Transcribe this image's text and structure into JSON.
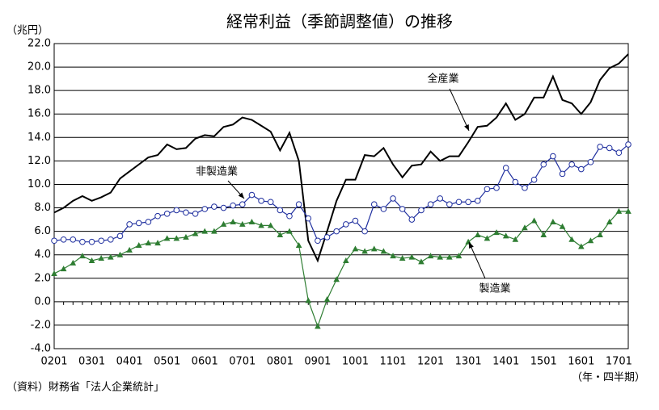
{
  "chart_data": {
    "type": "line",
    "title": "経常利益（季節調整値）の推移",
    "y_unit": "（兆円）",
    "x_unit": "（年・四半期）",
    "source": "（資料）財務省「法人企業統計」",
    "categories": [
      "0201",
      null,
      null,
      null,
      "0301",
      null,
      null,
      null,
      "0401",
      null,
      null,
      null,
      "0501",
      null,
      null,
      null,
      "0601",
      null,
      null,
      null,
      "0701",
      null,
      null,
      null,
      "0801",
      null,
      null,
      null,
      "0901",
      null,
      null,
      null,
      "1001",
      null,
      null,
      null,
      "1101",
      null,
      null,
      null,
      "1201",
      null,
      null,
      null,
      "1301",
      null,
      null,
      null,
      "1401",
      null,
      null,
      null,
      "1501",
      null,
      null,
      null,
      "1601",
      null,
      null,
      null,
      "1701",
      null
    ],
    "series": [
      {
        "name": "全産業",
        "color": "#000000",
        "marker": "none",
        "values": [
          7.6,
          8.0,
          8.6,
          9.0,
          8.6,
          8.9,
          9.3,
          10.5,
          11.1,
          11.7,
          12.3,
          12.5,
          13.4,
          13.0,
          13.1,
          13.9,
          14.2,
          14.1,
          14.9,
          15.1,
          15.7,
          15.5,
          15.0,
          14.5,
          12.9,
          14.4,
          12.0,
          5.2,
          3.5,
          6.0,
          8.6,
          10.4,
          10.4,
          12.5,
          12.4,
          13.1,
          11.7,
          10.6,
          11.6,
          11.7,
          12.8,
          12.0,
          12.4,
          12.4,
          13.6,
          14.9,
          15.0,
          15.7,
          16.9,
          15.5,
          16.0,
          17.4,
          17.4,
          19.2,
          17.2,
          16.9,
          16.0,
          17.0,
          18.9,
          19.9,
          20.3,
          21.1
        ]
      },
      {
        "name": "非製造業",
        "color": "#1f2f9f",
        "marker": "circle",
        "values": [
          5.2,
          5.3,
          5.3,
          5.1,
          5.1,
          5.2,
          5.3,
          5.6,
          6.6,
          6.7,
          6.8,
          7.3,
          7.5,
          7.8,
          7.6,
          7.5,
          7.9,
          8.1,
          8.0,
          8.2,
          8.3,
          9.1,
          8.6,
          8.5,
          7.8,
          7.3,
          8.3,
          7.1,
          5.2,
          5.5,
          6.0,
          6.6,
          6.9,
          6.0,
          8.3,
          7.9,
          8.8,
          7.9,
          7.0,
          7.8,
          8.3,
          8.8,
          8.3,
          8.5,
          8.5,
          8.6,
          9.6,
          9.7,
          11.4,
          10.2,
          9.7,
          10.4,
          11.7,
          12.4,
          10.9,
          11.7,
          11.3,
          11.9,
          13.2,
          13.1,
          12.7,
          13.4
        ]
      },
      {
        "name": "製造業",
        "color": "#2e7d32",
        "marker": "triangle",
        "values": [
          2.4,
          2.8,
          3.3,
          3.9,
          3.5,
          3.7,
          3.8,
          4.0,
          4.4,
          4.8,
          5.0,
          5.0,
          5.4,
          5.4,
          5.5,
          5.8,
          6.0,
          6.0,
          6.6,
          6.8,
          6.6,
          6.8,
          6.5,
          6.5,
          5.7,
          6.0,
          4.8,
          0.1,
          -2.1,
          0.2,
          1.9,
          3.5,
          4.5,
          4.3,
          4.5,
          4.3,
          3.9,
          3.7,
          3.8,
          3.4,
          3.9,
          3.8,
          3.8,
          3.9,
          5.1,
          5.7,
          5.4,
          5.9,
          5.6,
          5.3,
          6.3,
          6.9,
          5.7,
          6.8,
          6.4,
          5.3,
          4.7,
          5.2,
          5.7,
          6.8,
          7.7,
          7.7
        ]
      }
    ],
    "ylim": [
      -4,
      22
    ],
    "yticks": [
      {
        "value": -4,
        "label": "-4.0"
      },
      {
        "value": -2,
        "label": "-2.0"
      },
      {
        "value": 0,
        "label": "0.0"
      },
      {
        "value": 2,
        "label": "2.0"
      },
      {
        "value": 4,
        "label": "4.0"
      },
      {
        "value": 6,
        "label": "6.0"
      },
      {
        "value": 8,
        "label": "8.0"
      },
      {
        "value": 10,
        "label": "10.0"
      },
      {
        "value": 12,
        "label": "12.0"
      },
      {
        "value": 14,
        "label": "14.0"
      },
      {
        "value": 16,
        "label": "16.0"
      },
      {
        "value": 18,
        "label": "18.0"
      },
      {
        "value": 20,
        "label": "20.0"
      },
      {
        "value": 22,
        "label": "22.0"
      }
    ],
    "grid": true
  }
}
